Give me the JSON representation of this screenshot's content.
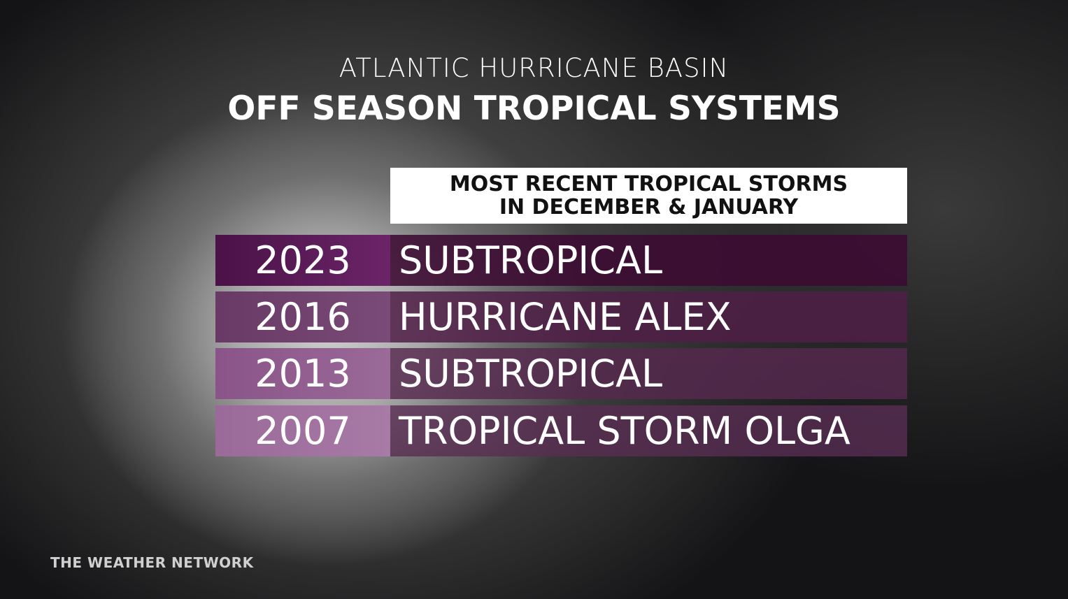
{
  "header": {
    "subtitle": "ATLANTIC HURRICANE BASIN",
    "title": "OFF SEASON TROPICAL SYSTEMS"
  },
  "table": {
    "caption": [
      "MOST RECENT TROPICAL STORMS",
      "IN DECEMBER & JANUARY"
    ],
    "rows": [
      [
        "2023",
        "SUBTROPICAL"
      ],
      [
        "2016",
        "HURRICANE ALEX"
      ],
      [
        "2013",
        "SUBTROPICAL"
      ],
      [
        "2007",
        "TROPICAL STORM OLGA"
      ]
    ]
  },
  "footer": {
    "brand": "THE WEATHER NETWORK"
  }
}
